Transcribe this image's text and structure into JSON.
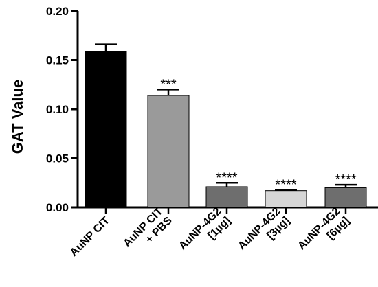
{
  "chart_data": {
    "type": "bar",
    "title": "",
    "xlabel": "",
    "ylabel": "GAT Value",
    "ylim": [
      0,
      0.2
    ],
    "yticks": [
      "0.00",
      "0.05",
      "0.10",
      "0.15",
      "0.20"
    ],
    "grid": false,
    "categories": [
      [
        "AuNP CIT"
      ],
      [
        "AuNP CIT",
        "+ PBS"
      ],
      [
        "AuNP-4G2",
        "[1µg]"
      ],
      [
        "AuNP-4G2",
        "[3µg]"
      ],
      [
        "AuNP-4G2",
        "[6µg]"
      ]
    ],
    "values": [
      0.159,
      0.114,
      0.021,
      0.017,
      0.02
    ],
    "errors": [
      0.007,
      0.006,
      0.004,
      0.001,
      0.003
    ],
    "significance": [
      "",
      "***",
      "****",
      "****",
      "****"
    ],
    "colors": [
      "#000000",
      "#9a9a9a",
      "#6e6e6e",
      "#d6d6d6",
      "#6e6e6e"
    ]
  }
}
